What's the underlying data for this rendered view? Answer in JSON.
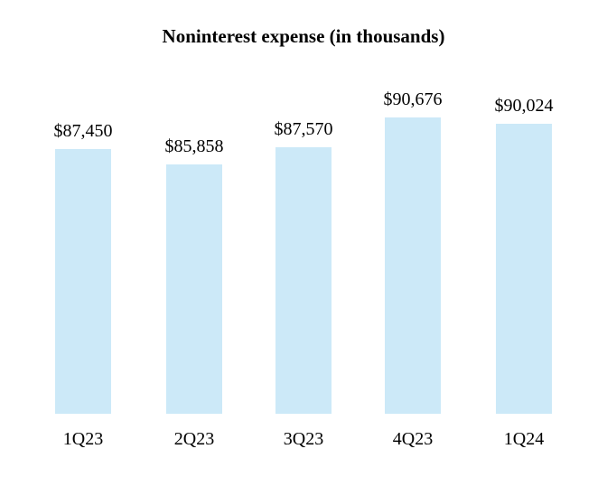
{
  "chart_data": {
    "type": "bar",
    "title": "Noninterest expense (in thousands)",
    "categories": [
      "1Q23",
      "2Q23",
      "3Q23",
      "4Q23",
      "1Q24"
    ],
    "values": [
      87450,
      85858,
      87570,
      90676,
      90024
    ],
    "value_labels": [
      "$87,450",
      "$85,858",
      "$87,570",
      "$90,676",
      "$90,024"
    ],
    "xlabel": "",
    "ylabel": "",
    "ylim": [
      60000,
      95000
    ],
    "grid": false,
    "legend": "none",
    "axes_visible": false,
    "bar_color": "#cce9f8",
    "text_color": "#000000",
    "background_color": "#ffffff"
  }
}
